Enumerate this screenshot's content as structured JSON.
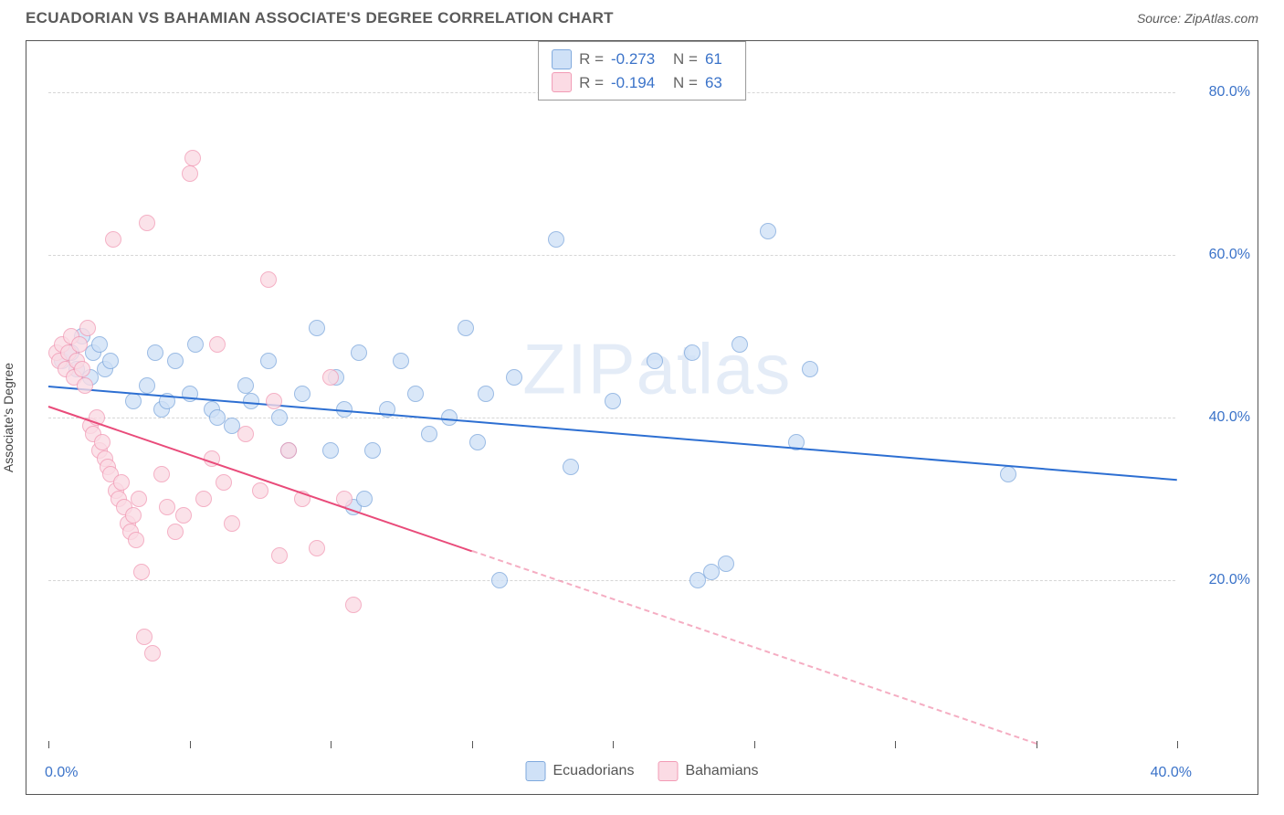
{
  "header": {
    "title": "ECUADORIAN VS BAHAMIAN ASSOCIATE'S DEGREE CORRELATION CHART",
    "source_prefix": "Source: ",
    "source_name": "ZipAtlas.com"
  },
  "chart": {
    "type": "scatter",
    "ylabel": "Associate's Degree",
    "watermark": "ZIPatlas",
    "background_color": "#ffffff",
    "grid_color": "#d6d6d6",
    "axis_color": "#555555",
    "label_color": "#3b73c9",
    "xlim": [
      0,
      40
    ],
    "ylim": [
      0,
      85
    ],
    "xtick_positions": [
      0,
      5,
      10,
      15,
      20,
      25,
      30,
      35,
      40
    ],
    "xtick_labels": {
      "0": "0.0%",
      "40": "40.0%"
    },
    "ytick_positions": [
      20,
      40,
      60,
      80
    ],
    "ytick_labels": {
      "20": "20.0%",
      "40": "40.0%",
      "60": "60.0%",
      "80": "80.0%"
    },
    "marker_radius": 9,
    "marker_stroke_width": 1.5,
    "series": [
      {
        "name": "Ecuadorians",
        "fill": "#cfe1f7",
        "stroke": "#7fa9dd",
        "R": "-0.273",
        "N": "61",
        "trend": {
          "color": "#2d6fd2",
          "width": 2.4,
          "x1": 0,
          "y1": 44.0,
          "x2": 40,
          "y2": 32.5,
          "solid_until_x": 40
        },
        "points": [
          [
            0.5,
            47
          ],
          [
            0.8,
            48
          ],
          [
            1.0,
            46
          ],
          [
            1.2,
            50
          ],
          [
            1.5,
            45
          ],
          [
            1.6,
            48
          ],
          [
            1.8,
            49
          ],
          [
            2.0,
            46
          ],
          [
            2.2,
            47
          ],
          [
            3.0,
            42
          ],
          [
            3.5,
            44
          ],
          [
            3.8,
            48
          ],
          [
            4.0,
            41
          ],
          [
            4.2,
            42
          ],
          [
            4.5,
            47
          ],
          [
            5.0,
            43
          ],
          [
            5.2,
            49
          ],
          [
            5.8,
            41
          ],
          [
            6.0,
            40
          ],
          [
            6.5,
            39
          ],
          [
            7.0,
            44
          ],
          [
            7.2,
            42
          ],
          [
            7.8,
            47
          ],
          [
            8.2,
            40
          ],
          [
            8.5,
            36
          ],
          [
            9.0,
            43
          ],
          [
            9.5,
            51
          ],
          [
            10.0,
            36
          ],
          [
            10.2,
            45
          ],
          [
            10.5,
            41
          ],
          [
            10.8,
            29
          ],
          [
            11.0,
            48
          ],
          [
            11.2,
            30
          ],
          [
            11.5,
            36
          ],
          [
            12.0,
            41
          ],
          [
            12.5,
            47
          ],
          [
            13.0,
            43
          ],
          [
            13.5,
            38
          ],
          [
            14.2,
            40
          ],
          [
            14.8,
            51
          ],
          [
            15.2,
            37
          ],
          [
            15.5,
            43
          ],
          [
            16.0,
            20
          ],
          [
            16.5,
            45
          ],
          [
            18.0,
            62
          ],
          [
            18.5,
            34
          ],
          [
            20.0,
            42
          ],
          [
            21.5,
            47
          ],
          [
            22.8,
            48
          ],
          [
            23.0,
            20
          ],
          [
            23.5,
            21
          ],
          [
            24.0,
            22
          ],
          [
            24.5,
            49
          ],
          [
            25.5,
            63
          ],
          [
            26.5,
            37
          ],
          [
            27.0,
            46
          ],
          [
            34.0,
            33
          ]
        ]
      },
      {
        "name": "Bahamians",
        "fill": "#fbdbe4",
        "stroke": "#f29bb5",
        "R": "-0.194",
        "N": "63",
        "trend": {
          "color": "#e94b7a",
          "width": 2.2,
          "x1": 0,
          "y1": 41.5,
          "x2": 35,
          "y2": 0,
          "solid_until_x": 15
        },
        "points": [
          [
            0.3,
            48
          ],
          [
            0.4,
            47
          ],
          [
            0.5,
            49
          ],
          [
            0.6,
            46
          ],
          [
            0.7,
            48
          ],
          [
            0.8,
            50
          ],
          [
            0.9,
            45
          ],
          [
            1.0,
            47
          ],
          [
            1.1,
            49
          ],
          [
            1.2,
            46
          ],
          [
            1.3,
            44
          ],
          [
            1.4,
            51
          ],
          [
            1.5,
            39
          ],
          [
            1.6,
            38
          ],
          [
            1.7,
            40
          ],
          [
            1.8,
            36
          ],
          [
            1.9,
            37
          ],
          [
            2.0,
            35
          ],
          [
            2.1,
            34
          ],
          [
            2.2,
            33
          ],
          [
            2.3,
            62
          ],
          [
            2.4,
            31
          ],
          [
            2.5,
            30
          ],
          [
            2.6,
            32
          ],
          [
            2.7,
            29
          ],
          [
            2.8,
            27
          ],
          [
            2.9,
            26
          ],
          [
            3.0,
            28
          ],
          [
            3.1,
            25
          ],
          [
            3.2,
            30
          ],
          [
            3.3,
            21
          ],
          [
            3.4,
            13
          ],
          [
            3.5,
            64
          ],
          [
            3.7,
            11
          ],
          [
            4.0,
            33
          ],
          [
            4.2,
            29
          ],
          [
            4.5,
            26
          ],
          [
            4.8,
            28
          ],
          [
            5.0,
            70
          ],
          [
            5.1,
            72
          ],
          [
            5.5,
            30
          ],
          [
            5.8,
            35
          ],
          [
            6.0,
            49
          ],
          [
            6.2,
            32
          ],
          [
            6.5,
            27
          ],
          [
            7.0,
            38
          ],
          [
            7.5,
            31
          ],
          [
            7.8,
            57
          ],
          [
            8.0,
            42
          ],
          [
            8.2,
            23
          ],
          [
            8.5,
            36
          ],
          [
            9.0,
            30
          ],
          [
            9.5,
            24
          ],
          [
            10.0,
            45
          ],
          [
            10.5,
            30
          ],
          [
            10.8,
            17
          ]
        ]
      }
    ]
  },
  "stat_legend": {
    "r_label": "R =",
    "n_label": "N ="
  },
  "bottom_legend": {
    "items": [
      "Ecuadorians",
      "Bahamians"
    ]
  }
}
